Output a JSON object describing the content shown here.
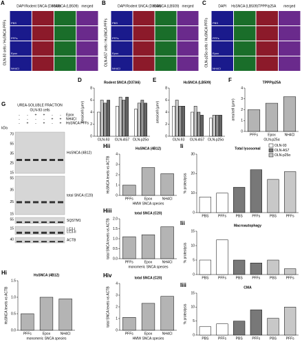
{
  "panels": [
    {
      "label": "A",
      "side": "OLN-93 cells / HuSNCA PFFs",
      "columns": [
        "DAPI",
        "Rodent SNCA (D37A6)",
        "HsSNCA (LB509)",
        "merged"
      ],
      "rows": [
        "PBS",
        "PFFs",
        "Epox",
        "NH4Cl"
      ]
    },
    {
      "label": "B",
      "side": "OLN-AS7 cells / HuSNCA PFFs",
      "columns": [
        "DAPI",
        "Rodent SNCA (D37A6)",
        "HsSNCA (LB509)",
        "merged"
      ],
      "rows": [
        "PBS",
        "PFFs",
        "Epox",
        "NH4Cl"
      ]
    },
    {
      "label": "C",
      "side": "OLN-p25α cells / HuSNCA PFFs",
      "columns": [
        "DAPI",
        "HsSNCA (LB509)",
        "TPPP/p25A",
        "merged"
      ],
      "rows": [
        "PBS",
        "PFFs",
        "Epox",
        "NH4Cl"
      ]
    }
  ],
  "blot": {
    "label": "G",
    "title": "UREA-SOLUBLE FRACTION",
    "cells": "OLN-93 cells",
    "kda": "kDa",
    "conditions": [
      {
        "name": "Epox",
        "signs": [
          "-",
          "-",
          "+",
          "+",
          "-",
          "-"
        ]
      },
      {
        "name": "NH4Cl",
        "signs": [
          "-",
          "-",
          "-",
          "-",
          "+",
          "+"
        ]
      },
      {
        "name": "HsSNCA PFFs",
        "signs": [
          "-",
          "+",
          "-",
          "+",
          "-",
          "+"
        ]
      }
    ],
    "bands": [
      {
        "labels": [
          "HsSNCA (4B12)"
        ],
        "markers": [
          "70",
          "55",
          "35",
          "25",
          "15"
        ]
      },
      {
        "labels": [
          "total SNCA (C20)"
        ],
        "markers": [
          "55",
          "35",
          "25",
          "15"
        ]
      },
      {
        "labels": [
          "SQSTM1"
        ],
        "markers": [
          "55"
        ]
      },
      {
        "labels": [
          "LC3-I",
          "LC3-II"
        ],
        "markers": [
          "15"
        ]
      },
      {
        "labels": [
          "ACTB"
        ],
        "markers": [
          "40"
        ]
      }
    ]
  },
  "chart_data": [
    {
      "type": "bar",
      "panel": "D",
      "title": "Rodent SNCA (D37A6)",
      "y_label": "area/cell (µm²)",
      "categories": [
        "OLN-93",
        "OLN-AS7",
        "OLN-p25α"
      ],
      "series": [
        {
          "color": "#ffffff",
          "values": [
            4,
            5,
            4.5
          ]
        },
        {
          "color": "#c8c8c8",
          "values": [
            6,
            6.5,
            5.5
          ]
        },
        {
          "color": "#969696",
          "values": [
            5.5,
            6,
            6
          ]
        },
        {
          "color": "#646464",
          "values": [
            6,
            6.5,
            5.5
          ]
        }
      ],
      "ylim": [
        0,
        8
      ],
      "yticks": [
        0,
        2,
        4,
        6,
        8
      ]
    },
    {
      "type": "bar",
      "panel": "E",
      "title": "HsSNCA (LB509)",
      "y_label": "area/cell (µm²)",
      "categories": [
        "OLN-93",
        "OLN-AS7",
        "OLN-p25α"
      ],
      "series": [
        {
          "color": "#ffffff",
          "values": [
            5,
            4,
            3
          ]
        },
        {
          "color": "#c8c8c8",
          "values": [
            6,
            5,
            3.5
          ]
        },
        {
          "color": "#969696",
          "values": [
            5,
            4,
            3.5
          ]
        },
        {
          "color": "#646464",
          "values": [
            5,
            3.5,
            3.5
          ]
        }
      ],
      "ylim": [
        0,
        8
      ],
      "yticks": [
        0,
        2,
        4,
        6,
        8
      ]
    },
    {
      "type": "bar",
      "panel": "F",
      "title": "TPPP/p25A",
      "y_label": "area/cell (µm²)",
      "x_label": "OLN-p25α",
      "categories": [
        "PFFs",
        "Epox",
        "NH4Cl"
      ],
      "series": [
        {
          "color": "#b4b4b4",
          "values": [
            2,
            2.6,
            3.2
          ]
        }
      ],
      "ylim": [
        0,
        4
      ],
      "yticks": [
        0,
        1,
        2,
        3,
        4
      ]
    },
    {
      "type": "bar",
      "panel": "Hi",
      "title": "HsSNCA (4B12)",
      "y_label": "HsSNCA levels vs ACTB",
      "x_label": "monomeric SNCA species",
      "categories": [
        "PFFs",
        "Epox",
        "NH4Cl"
      ],
      "series": [
        {
          "color": "#b4b4b4",
          "values": [
            0.5,
            1,
            0.95
          ]
        }
      ],
      "ylim": [
        0,
        1.5
      ],
      "yticks": [
        {
          "value": 0,
          "label": "0.0"
        },
        {
          "value": 0.5,
          "label": "0.5"
        },
        {
          "value": 1,
          "label": "1.0"
        },
        {
          "value": 1.5,
          "label": "1.5"
        }
      ]
    },
    {
      "type": "bar",
      "panel": "Hii",
      "title": "HsSNCA (4B12)",
      "y_label": "HsSNCA levels vs ACTB",
      "x_label": "HMW SNCA species",
      "categories": [
        "PFFs",
        "Epox",
        "NH4Cl"
      ],
      "series": [
        {
          "color": "#b4b4b4",
          "values": [
            1,
            2.7,
            2.1
          ]
        }
      ],
      "ylim": [
        0,
        4
      ],
      "yticks": [
        0,
        1,
        2,
        3,
        4
      ]
    },
    {
      "type": "bar",
      "panel": "Hiii",
      "title": "total SNCA (C20)",
      "y_label": "total SNCA levels vs ACTB",
      "x_label": "monomeric SNCA species",
      "categories": [
        "PFFs",
        "Epox",
        "NH4Cl"
      ],
      "series": [
        {
          "color": "#b4b4b4",
          "values": [
            1.1,
            1.2,
            1.6
          ]
        }
      ],
      "ylim": [
        0,
        2
      ],
      "yticks": [
        {
          "value": 0,
          "label": "0.0"
        },
        {
          "value": 0.5,
          "label": "0.5"
        },
        {
          "value": 1,
          "label": "1.0"
        },
        {
          "value": 1.5,
          "label": "1.5"
        },
        {
          "value": 2,
          "label": "2.0"
        }
      ]
    },
    {
      "type": "bar",
      "panel": "Hiv",
      "title": "total SNCA (C20)",
      "y_label": "total SNCA levels vs ACTB",
      "x_label": "HMW SNCA species",
      "categories": [
        "PFFs",
        "Epox",
        "NH4Cl"
      ],
      "series": [
        {
          "color": "#b4b4b4",
          "values": [
            1.1,
            2.3,
            2.9
          ]
        }
      ],
      "ylim": [
        0,
        4
      ],
      "yticks": [
        0,
        1,
        2,
        3,
        4
      ]
    },
    {
      "type": "bar",
      "panel": "Ii",
      "title": "Total lysosomal",
      "y_label": "% proteolysis",
      "categories": [
        "PBS",
        "PFFs",
        "PBS",
        "PFFs",
        "PBS",
        "PFFs"
      ],
      "series": [
        {
          "name": "OLN-93",
          "color": "#ffffff",
          "values": [
            8,
            10,
            null,
            null,
            null,
            null
          ]
        },
        {
          "name": "OLN-AS7",
          "color": "#787878",
          "values": [
            null,
            null,
            13,
            22,
            null,
            null
          ]
        },
        {
          "name": "OLN-p25α",
          "color": "#c8c8c8",
          "values": [
            null,
            null,
            null,
            null,
            17,
            21
          ]
        }
      ],
      "ylim": [
        0,
        30
      ],
      "yticks": [
        0,
        10,
        20,
        30
      ]
    },
    {
      "type": "bar",
      "panel": "Iii",
      "title": "Macroautophagy",
      "y_label": "% proteolysis",
      "categories": [
        "PBS",
        "PFFs",
        "PBS",
        "PFFs",
        "PBS",
        "PFFs"
      ],
      "series": [
        {
          "color": "#ffffff",
          "values": [
            5,
            12,
            null,
            null,
            null,
            null
          ]
        },
        {
          "color": "#787878",
          "values": [
            null,
            null,
            5,
            4,
            null,
            null
          ]
        },
        {
          "color": "#c8c8c8",
          "values": [
            null,
            null,
            null,
            null,
            5,
            2
          ]
        }
      ],
      "ylim": [
        0,
        15
      ],
      "yticks": [
        0,
        5,
        10,
        15
      ]
    },
    {
      "type": "bar",
      "panel": "Iiii",
      "title": "CMA",
      "y_label": "% proteolysis",
      "categories": [
        "PBS",
        "PFFs",
        "PBS",
        "PFFs",
        "PBS",
        "PFFs"
      ],
      "series": [
        {
          "color": "#ffffff",
          "values": [
            3,
            4,
            null,
            null,
            null,
            null
          ]
        },
        {
          "color": "#787878",
          "values": [
            null,
            null,
            5,
            9,
            null,
            null
          ]
        },
        {
          "color": "#c8c8c8",
          "values": [
            null,
            null,
            null,
            null,
            6,
            10
          ]
        }
      ],
      "ylim": [
        0,
        15
      ],
      "yticks": [
        0,
        5,
        10,
        15
      ]
    }
  ]
}
